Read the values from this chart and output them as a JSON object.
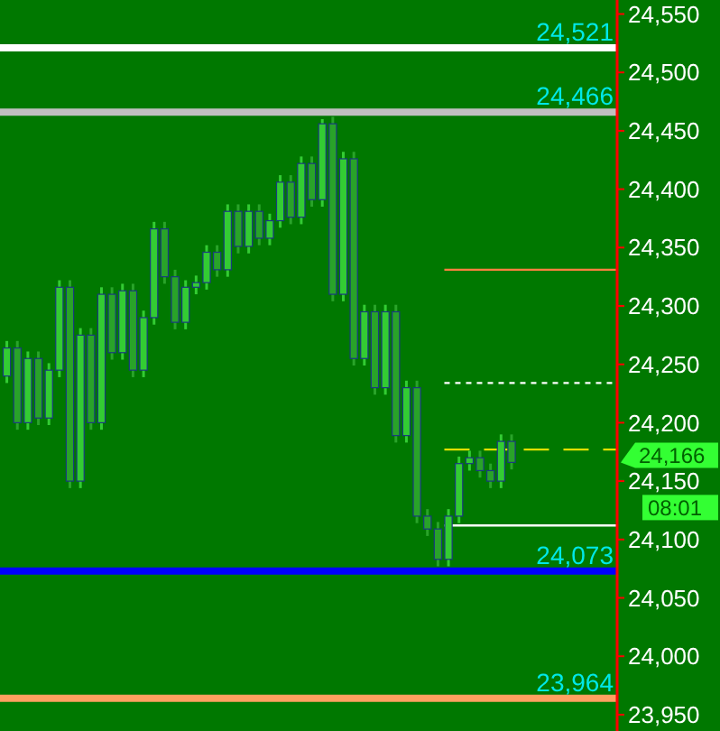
{
  "chart_data": {
    "type": "candlestick",
    "colors": [
      "#33cc33",
      "#29a329",
      "#33cc33",
      "#29a329",
      "#33cc33",
      "#33cc33",
      "#29a329",
      "#33cc33",
      "#29a329",
      "#33cc33",
      "#29a329",
      "#33cc33",
      "#29a329",
      "#33cc33",
      "#33cc33",
      "#29a329",
      "#29a329",
      "#33cc33",
      "#33cc33",
      "#33cc33",
      "#29a329",
      "#33cc33",
      "#29a329",
      "#33cc33",
      "#29a329",
      "#33cc33",
      "#33cc33",
      "#29a329",
      "#33cc33",
      "#29a329",
      "#33cc33",
      "#29a329",
      "#33cc33",
      "#29a329",
      "#33cc33",
      "#29a329",
      "#33cc33",
      "#29a329",
      "#33cc33",
      "#29a329",
      "#29a329",
      "#29a329",
      "#33cc33",
      "#33cc33",
      "#33cc33",
      "#29a329",
      "#29a329",
      "#33cc33",
      "#29a329"
    ],
    "categories": [
      null,
      null,
      null,
      null,
      null,
      null,
      null,
      null,
      null,
      null,
      null,
      null,
      null,
      null,
      null,
      null,
      null,
      null,
      null,
      null,
      null,
      null,
      null,
      null,
      null,
      null,
      null,
      null,
      null,
      null,
      null,
      null,
      null,
      null,
      null,
      null,
      null,
      null,
      null,
      null,
      null,
      null,
      null,
      null,
      null,
      null,
      null,
      null,
      null
    ],
    "ohlc": [
      [
        24240,
        24270,
        24234,
        24264
      ],
      [
        24264,
        24270,
        24194,
        24200
      ],
      [
        24200,
        24261,
        24194,
        24255
      ],
      [
        24255,
        24261,
        24198,
        24204
      ],
      [
        24204,
        24251,
        24198,
        24245
      ],
      [
        24245,
        24322,
        24239,
        24316
      ],
      [
        24316,
        24322,
        24144,
        24150
      ],
      [
        24150,
        24281,
        24144,
        24275
      ],
      [
        24275,
        24281,
        24194,
        24200
      ],
      [
        24200,
        24316,
        24194,
        24310
      ],
      [
        24310,
        24316,
        24254,
        24260
      ],
      [
        24260,
        24319,
        24254,
        24313
      ],
      [
        24313,
        24319,
        24239,
        24245
      ],
      [
        24245,
        24296,
        24239,
        24290
      ],
      [
        24290,
        24372,
        24284,
        24366
      ],
      [
        24366,
        24372,
        24319,
        24325
      ],
      [
        24325,
        24331,
        24280,
        24286
      ],
      [
        24286,
        24322,
        24280,
        24316
      ],
      [
        24316,
        24326,
        24310,
        24320
      ],
      [
        24320,
        24352,
        24314,
        24346
      ],
      [
        24346,
        24352,
        24325,
        24331
      ],
      [
        24331,
        24387,
        24325,
        24381
      ],
      [
        24381,
        24387,
        24345,
        24351
      ],
      [
        24351,
        24387,
        24345,
        24381
      ],
      [
        24381,
        24387,
        24352,
        24358
      ],
      [
        24358,
        24379,
        24352,
        24373
      ],
      [
        24373,
        24412,
        24367,
        24406
      ],
      [
        24406,
        24412,
        24370,
        24376
      ],
      [
        24376,
        24428,
        24370,
        24422
      ],
      [
        24422,
        24428,
        24385,
        24391
      ],
      [
        24391,
        24460,
        24385,
        24456
      ],
      [
        24456,
        24462,
        24304,
        24310
      ],
      [
        24310,
        24432,
        24304,
        24426
      ],
      [
        24426,
        24432,
        24249,
        24255
      ],
      [
        24255,
        24301,
        24249,
        24295
      ],
      [
        24295,
        24301,
        24224,
        24230
      ],
      [
        24230,
        24301,
        24224,
        24295
      ],
      [
        24295,
        24301,
        24183,
        24189
      ],
      [
        24189,
        24236,
        24183,
        24230
      ],
      [
        24230,
        24236,
        24114,
        24120
      ],
      [
        24120,
        24126,
        24103,
        24109
      ],
      [
        24109,
        24115,
        24077,
        24083
      ],
      [
        24083,
        24126,
        24077,
        24120
      ],
      [
        24120,
        24171,
        24114,
        24165
      ],
      [
        24165,
        24176,
        24159,
        24170
      ],
      [
        24170,
        24176,
        24153,
        24159
      ],
      [
        24159,
        24165,
        24144,
        24150
      ],
      [
        24150,
        24190,
        24144,
        24184
      ],
      [
        24184,
        24190,
        24160,
        24166
      ]
    ],
    "ylim": [
      23936,
      24562
    ],
    "yticks": [
      {
        "value": 23950,
        "label": "23,950"
      },
      {
        "value": 24000,
        "label": "24,000"
      },
      {
        "value": 24050,
        "label": "24,050"
      },
      {
        "value": 24100,
        "label": "24,100"
      },
      {
        "value": 24150,
        "label": "24,150"
      },
      {
        "value": 24200,
        "label": "24,200"
      },
      {
        "value": 24250,
        "label": "24,250"
      },
      {
        "value": 24300,
        "label": "24,300"
      },
      {
        "value": 24350,
        "label": "24,350"
      },
      {
        "value": 24400,
        "label": "24,400"
      },
      {
        "value": 24450,
        "label": "24,450"
      },
      {
        "value": 24500,
        "label": "24,500"
      },
      {
        "value": 24550,
        "label": "24,550"
      }
    ],
    "ref_lines": [
      {
        "axis": "y",
        "value": 24521,
        "label": "24,521",
        "color": "#ffffff",
        "line_style": "solid"
      },
      {
        "axis": "y",
        "value": 24466,
        "label": "24,466",
        "color": "#c0c0c0",
        "line_style": "solid"
      },
      {
        "axis": "y",
        "value": 24331,
        "color": "#ff8040",
        "line_style": "solid"
      },
      {
        "axis": "y",
        "value": 24234,
        "color": "#ffffff",
        "line_style": "dotted"
      },
      {
        "axis": "y",
        "value": 24177,
        "color": "#e0e000",
        "line_style": "dashed"
      },
      {
        "axis": "y",
        "value": 24112,
        "color": "#ffffff",
        "line_style": "solid"
      },
      {
        "axis": "y",
        "value": 24073,
        "label": "24,073",
        "color": "#0000ff",
        "line_style": "solid"
      },
      {
        "axis": "y",
        "value": 23964,
        "label": "23,964",
        "color": "#ffa060",
        "line_style": "solid"
      }
    ],
    "annotations": [
      "24,166",
      "08:01"
    ]
  }
}
